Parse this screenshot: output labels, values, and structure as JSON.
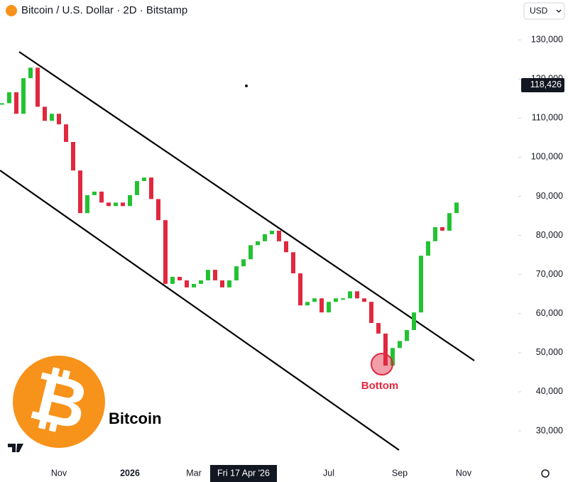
{
  "chart_data": {
    "type": "candlestick",
    "title": "Bitcoin / U.S. Dollar · 2D · Bitstamp",
    "currency": "USD",
    "categories": [
      null,
      null,
      null,
      null,
      null,
      null,
      null,
      null,
      "Nov",
      null,
      null,
      null,
      null,
      null,
      null,
      null,
      null,
      null,
      "2026",
      null,
      null,
      null,
      null,
      null,
      null,
      null,
      null,
      "Mar",
      null,
      null,
      null,
      null,
      null,
      null,
      "Fri 17 Apr '26",
      null,
      null,
      null,
      null,
      null,
      null,
      null,
      null,
      null,
      null,
      null,
      "Jul",
      null,
      null,
      null,
      null,
      null,
      null,
      null,
      null,
      null,
      "Sep",
      null,
      null,
      null,
      null,
      null,
      null,
      null,
      null,
      "Nov"
    ],
    "values": [
      113800,
      116600,
      111100,
      120200,
      122900,
      112900,
      109300,
      111100,
      108400,
      103900,
      96600,
      85700,
      90300,
      91200,
      88400,
      87500,
      88400,
      87500,
      90300,
      93900,
      94800,
      89300,
      83900,
      67600,
      69400,
      68500,
      66700,
      67600,
      68500,
      71200,
      68500,
      66700,
      68500,
      72100,
      73900,
      77500,
      78500,
      80300,
      81200,
      78500,
      75700,
      70300,
      62100,
      63000,
      63900,
      60300,
      63000,
      63900,
      63900,
      65700,
      63900,
      63000,
      57600,
      54900,
      46700,
      51200,
      53000,
      55800,
      60300,
      74800,
      78500,
      82100,
      81200,
      85700,
      88400,
      null
    ],
    "up_color": "#22c232",
    "down_color": "#e0283f",
    "ylim": [
      22200,
      140200
    ],
    "yticks": [
      {
        "value": 30000,
        "label": "30,000"
      },
      {
        "value": 40000,
        "label": "40,000"
      },
      {
        "value": 50000,
        "label": "50,000"
      },
      {
        "value": 60000,
        "label": "60,000"
      },
      {
        "value": 70000,
        "label": "70,000"
      },
      {
        "value": 80000,
        "label": "80,000"
      },
      {
        "value": 90000,
        "label": "90,000"
      },
      {
        "value": 100000,
        "label": "100,000"
      },
      {
        "value": 110000,
        "label": "110,000"
      },
      {
        "value": 120000,
        "label": "120,000"
      },
      {
        "value": 130000,
        "label": "130,000"
      }
    ],
    "last_price": {
      "value": 118426,
      "label": "118,426"
    },
    "annotation": "Bottom",
    "logo": {
      "symbol": "₿",
      "name": "Bitcoin"
    }
  }
}
